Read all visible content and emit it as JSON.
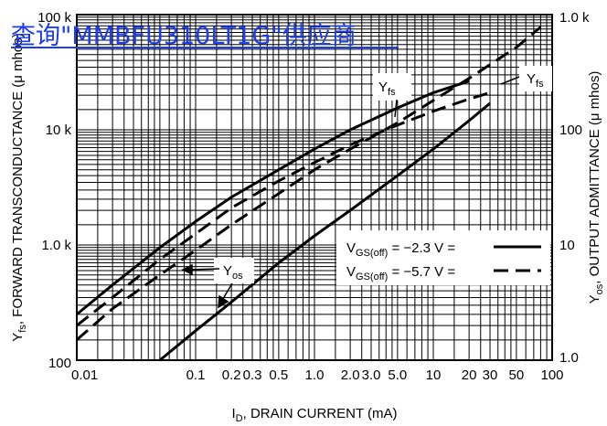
{
  "watermark": "查询\"MMBFU310LT1G\"供应商",
  "chart_data": {
    "type": "line",
    "xlabel": "I_D, DRAIN CURRENT (mA)",
    "xlabel_parts": {
      "main": "I",
      "sub": "D",
      "rest": ", DRAIN CURRENT (mA)"
    },
    "ylabel_left": "Y_fs, FORWARD TRANSCONDUCTANCE (μ mhos)",
    "ylabel_left_parts": {
      "main": "Y",
      "sub": "fs",
      "rest": ", FORWARD TRANSCONDUCTANCE (μ mhos)"
    },
    "ylabel_right": "Y_os, OUTPUT ADMITTANCE (μ mhos)",
    "ylabel_right_parts": {
      "main": "Y",
      "sub": "os",
      "rest": ", OUTPUT ADMITTANCE (μ mhos)"
    },
    "x_scale": "log",
    "y_left_scale": "log",
    "y_right_scale": "log",
    "xlim": [
      0.01,
      100
    ],
    "y_left_lim": [
      100,
      100000
    ],
    "y_right_lim": [
      1,
      1000
    ],
    "grid": true,
    "x_ticks": [
      {
        "v": 0.01,
        "label": "0.01"
      },
      {
        "v": 0.1,
        "label": "0.1"
      },
      {
        "v": 0.2,
        "label": "0.2"
      },
      {
        "v": 0.3,
        "label": "0.3"
      },
      {
        "v": 0.5,
        "label": "0.5"
      },
      {
        "v": 1,
        "label": "1.0"
      },
      {
        "v": 2,
        "label": "2.0"
      },
      {
        "v": 3,
        "label": "3.0"
      },
      {
        "v": 5,
        "label": "5.0"
      },
      {
        "v": 10,
        "label": "10"
      },
      {
        "v": 20,
        "label": "20"
      },
      {
        "v": 30,
        "label": "30"
      },
      {
        "v": 50,
        "label": "50"
      },
      {
        "v": 100,
        "label": "100"
      }
    ],
    "y_left_ticks": [
      {
        "v": 100,
        "label": "100"
      },
      {
        "v": 1000,
        "label": "1.0 k"
      },
      {
        "v": 10000,
        "label": "10 k"
      },
      {
        "v": 100000,
        "label": "100 k"
      }
    ],
    "y_right_ticks": [
      {
        "v": 1,
        "label": "1.0"
      },
      {
        "v": 10,
        "label": "10"
      },
      {
        "v": 100,
        "label": "100"
      },
      {
        "v": 1000,
        "label": "1.0 k"
      }
    ],
    "series": [
      {
        "name": "Y_fs (V_GS(off) = -2.3 V)",
        "axis": "left",
        "style": "solid",
        "x": [
          0.01,
          0.02,
          0.05,
          0.1,
          0.2,
          0.5,
          1,
          2,
          5,
          10,
          20
        ],
        "y": [
          250,
          450,
          950,
          1600,
          2600,
          4500,
          6800,
          10000,
          15500,
          21000,
          26500
        ]
      },
      {
        "name": "Y_fs (V_GS(off) = -5.7 V)",
        "axis": "left",
        "style": "dashed",
        "x": [
          0.01,
          0.02,
          0.05,
          0.1,
          0.2,
          0.5,
          1,
          2,
          5,
          10,
          20,
          30
        ],
        "y": [
          200,
          350,
          750,
          1250,
          2100,
          3600,
          5200,
          7400,
          11000,
          14500,
          18500,
          21000
        ]
      },
      {
        "name": "Y_os (V_GS(off) = -2.3 V)",
        "axis": "right",
        "style": "solid",
        "x": [
          0.05,
          0.1,
          0.2,
          0.5,
          1,
          2,
          5,
          10,
          20,
          30
        ],
        "y": [
          1,
          1.8,
          3.2,
          7,
          12,
          20,
          40,
          68,
          120,
          170
        ]
      },
      {
        "name": "Y_os (V_GS(off) = -5.7 V)",
        "axis": "right",
        "style": "dashed",
        "x": [
          0.01,
          0.02,
          0.05,
          0.1,
          0.2,
          0.5,
          1,
          2,
          5,
          10,
          20,
          50,
          80
        ],
        "y": [
          1.5,
          2.8,
          5.5,
          9,
          15,
          28,
          45,
          68,
          115,
          180,
          280,
          520,
          780
        ]
      }
    ],
    "annotations": [
      {
        "id": "yfs-left",
        "text_main": "Y",
        "text_sub": "fs",
        "at": [
          1.5,
          23000
        ]
      },
      {
        "id": "yfs-right",
        "text_main": "Y",
        "text_sub": "fs",
        "at": [
          42,
          26000
        ]
      },
      {
        "id": "yos",
        "text_main": "Y",
        "text_sub": "os",
        "at": [
          0.26,
          640
        ]
      }
    ],
    "legend": {
      "placement": "bottom-right",
      "entries": [
        {
          "main": "V",
          "sub": "GS(off)",
          "rest": " = −2.3 V =",
          "style": "solid"
        },
        {
          "main": "V",
          "sub": "GS(off)",
          "rest": " = −5.7 V =",
          "style": "dashed"
        }
      ]
    }
  }
}
